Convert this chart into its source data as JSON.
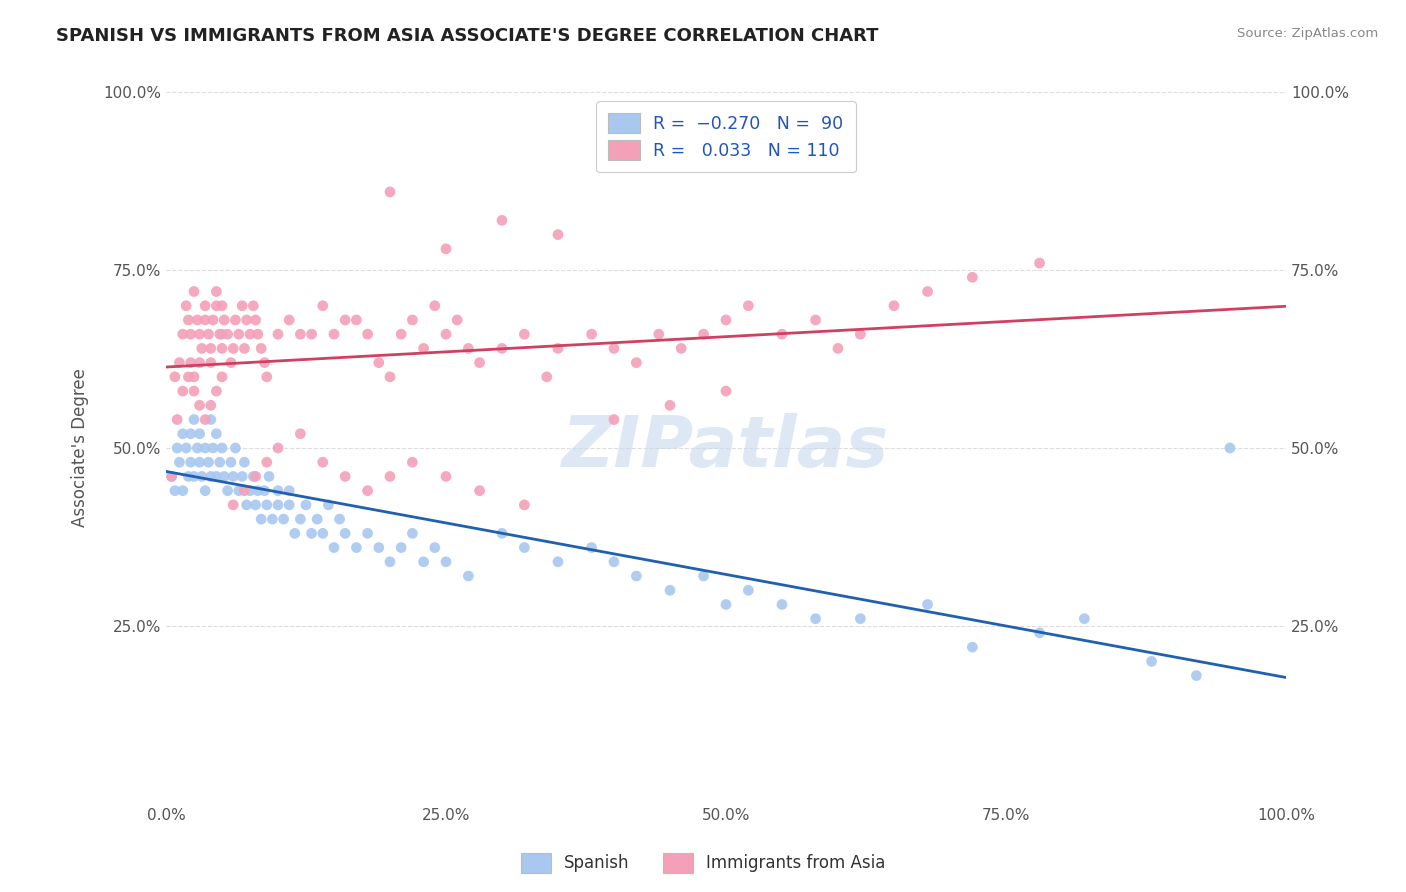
{
  "title": "SPANISH VS IMMIGRANTS FROM ASIA ASSOCIATE'S DEGREE CORRELATION CHART",
  "source": "Source: ZipAtlas.com",
  "ylabel": "Associate's Degree",
  "watermark": "ZIPatlas",
  "color_blue": "#a8c8f0",
  "color_pink": "#f4a0b8",
  "line_blue": "#2060b0",
  "line_pink": "#d04060",
  "xlim": [
    0.0,
    1.0
  ],
  "ylim": [
    0.0,
    1.0
  ],
  "xticks": [
    0.0,
    0.25,
    0.5,
    0.75,
    1.0
  ],
  "yticks": [
    0.25,
    0.5,
    0.75,
    1.0
  ],
  "xticklabels": [
    "0.0%",
    "25.0%",
    "50.0%",
    "75.0%",
    "100.0%"
  ],
  "yticklabels": [
    "25.0%",
    "50.0%",
    "75.0%",
    "100.0%"
  ],
  "blue_x": [
    0.005,
    0.008,
    0.01,
    0.012,
    0.015,
    0.015,
    0.018,
    0.02,
    0.022,
    0.022,
    0.025,
    0.025,
    0.028,
    0.03,
    0.03,
    0.032,
    0.035,
    0.035,
    0.038,
    0.04,
    0.04,
    0.042,
    0.045,
    0.045,
    0.048,
    0.05,
    0.05,
    0.052,
    0.055,
    0.058,
    0.06,
    0.062,
    0.065,
    0.068,
    0.07,
    0.072,
    0.075,
    0.078,
    0.08,
    0.082,
    0.085,
    0.088,
    0.09,
    0.092,
    0.095,
    0.1,
    0.1,
    0.105,
    0.11,
    0.11,
    0.115,
    0.12,
    0.125,
    0.13,
    0.135,
    0.14,
    0.145,
    0.15,
    0.155,
    0.16,
    0.17,
    0.18,
    0.19,
    0.2,
    0.21,
    0.22,
    0.23,
    0.24,
    0.25,
    0.27,
    0.3,
    0.32,
    0.35,
    0.38,
    0.4,
    0.42,
    0.45,
    0.48,
    0.5,
    0.52,
    0.55,
    0.58,
    0.62,
    0.68,
    0.72,
    0.78,
    0.82,
    0.88,
    0.92,
    0.95
  ],
  "blue_y": [
    0.46,
    0.44,
    0.5,
    0.48,
    0.52,
    0.44,
    0.5,
    0.46,
    0.52,
    0.48,
    0.54,
    0.46,
    0.5,
    0.52,
    0.48,
    0.46,
    0.5,
    0.44,
    0.48,
    0.54,
    0.46,
    0.5,
    0.52,
    0.46,
    0.48,
    0.5,
    0.66,
    0.46,
    0.44,
    0.48,
    0.46,
    0.5,
    0.44,
    0.46,
    0.48,
    0.42,
    0.44,
    0.46,
    0.42,
    0.44,
    0.4,
    0.44,
    0.42,
    0.46,
    0.4,
    0.44,
    0.42,
    0.4,
    0.44,
    0.42,
    0.38,
    0.4,
    0.42,
    0.38,
    0.4,
    0.38,
    0.42,
    0.36,
    0.4,
    0.38,
    0.36,
    0.38,
    0.36,
    0.34,
    0.36,
    0.38,
    0.34,
    0.36,
    0.34,
    0.32,
    0.38,
    0.36,
    0.34,
    0.36,
    0.34,
    0.32,
    0.3,
    0.32,
    0.28,
    0.3,
    0.28,
    0.26,
    0.26,
    0.28,
    0.22,
    0.24,
    0.26,
    0.2,
    0.18,
    0.5
  ],
  "pink_x": [
    0.005,
    0.008,
    0.01,
    0.012,
    0.015,
    0.015,
    0.018,
    0.02,
    0.022,
    0.022,
    0.025,
    0.025,
    0.028,
    0.03,
    0.03,
    0.032,
    0.035,
    0.035,
    0.038,
    0.04,
    0.04,
    0.042,
    0.045,
    0.045,
    0.048,
    0.05,
    0.05,
    0.052,
    0.055,
    0.058,
    0.06,
    0.062,
    0.065,
    0.068,
    0.07,
    0.072,
    0.075,
    0.078,
    0.08,
    0.082,
    0.085,
    0.088,
    0.09,
    0.1,
    0.11,
    0.12,
    0.13,
    0.14,
    0.15,
    0.16,
    0.17,
    0.18,
    0.19,
    0.2,
    0.21,
    0.22,
    0.23,
    0.24,
    0.25,
    0.26,
    0.27,
    0.28,
    0.3,
    0.32,
    0.34,
    0.35,
    0.38,
    0.4,
    0.42,
    0.44,
    0.46,
    0.48,
    0.5,
    0.52,
    0.55,
    0.58,
    0.6,
    0.62,
    0.65,
    0.68,
    0.72,
    0.78,
    0.2,
    0.25,
    0.3,
    0.35,
    0.4,
    0.45,
    0.5,
    0.02,
    0.025,
    0.03,
    0.035,
    0.04,
    0.045,
    0.05,
    0.06,
    0.07,
    0.08,
    0.09,
    0.1,
    0.12,
    0.14,
    0.16,
    0.18,
    0.2,
    0.22,
    0.25,
    0.28,
    0.32
  ],
  "pink_y": [
    0.46,
    0.6,
    0.54,
    0.62,
    0.66,
    0.58,
    0.7,
    0.68,
    0.62,
    0.66,
    0.6,
    0.72,
    0.68,
    0.62,
    0.66,
    0.64,
    0.7,
    0.68,
    0.66,
    0.62,
    0.64,
    0.68,
    0.72,
    0.7,
    0.66,
    0.64,
    0.7,
    0.68,
    0.66,
    0.62,
    0.64,
    0.68,
    0.66,
    0.7,
    0.64,
    0.68,
    0.66,
    0.7,
    0.68,
    0.66,
    0.64,
    0.62,
    0.6,
    0.66,
    0.68,
    0.66,
    0.66,
    0.7,
    0.66,
    0.68,
    0.68,
    0.66,
    0.62,
    0.6,
    0.66,
    0.68,
    0.64,
    0.7,
    0.66,
    0.68,
    0.64,
    0.62,
    0.64,
    0.66,
    0.6,
    0.64,
    0.66,
    0.64,
    0.62,
    0.66,
    0.64,
    0.66,
    0.68,
    0.7,
    0.66,
    0.68,
    0.64,
    0.66,
    0.7,
    0.72,
    0.74,
    0.76,
    0.86,
    0.78,
    0.82,
    0.8,
    0.54,
    0.56,
    0.58,
    0.6,
    0.58,
    0.56,
    0.54,
    0.56,
    0.58,
    0.6,
    0.42,
    0.44,
    0.46,
    0.48,
    0.5,
    0.52,
    0.48,
    0.46,
    0.44,
    0.46,
    0.48,
    0.46,
    0.44,
    0.42
  ]
}
